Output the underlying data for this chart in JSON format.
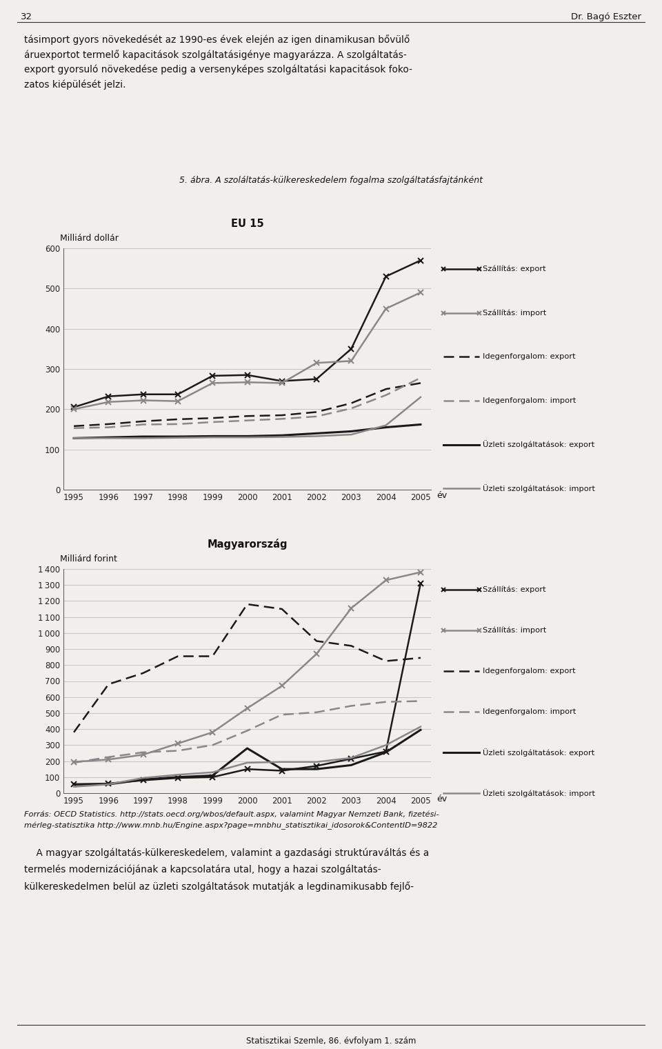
{
  "years": [
    1995,
    1996,
    1997,
    1998,
    1999,
    2000,
    2001,
    2002,
    2003,
    2004,
    2005
  ],
  "eu15": {
    "szallitas_export": [
      205,
      232,
      237,
      237,
      283,
      285,
      270,
      275,
      350,
      530,
      570
    ],
    "szallitas_import": [
      200,
      218,
      222,
      220,
      265,
      267,
      265,
      315,
      320,
      450,
      490
    ],
    "idegenforgalom_export": [
      158,
      163,
      170,
      175,
      178,
      183,
      185,
      193,
      215,
      250,
      265
    ],
    "idegenforgalom_import": [
      153,
      155,
      162,
      163,
      168,
      172,
      176,
      182,
      202,
      235,
      278
    ],
    "uzleti_export": [
      128,
      130,
      132,
      132,
      133,
      133,
      135,
      140,
      145,
      155,
      162
    ],
    "uzleti_import": [
      128,
      128,
      128,
      129,
      130,
      130,
      131,
      133,
      137,
      160,
      230
    ],
    "ylim": [
      0,
      600
    ],
    "yticks": [
      0,
      100,
      200,
      300,
      400,
      500,
      600
    ],
    "ylabel": "Milliárd dollár",
    "title": "EU 15"
  },
  "magyarorszag": {
    "szallitas_export": [
      55,
      60,
      80,
      95,
      100,
      150,
      140,
      170,
      215,
      260,
      1310
    ],
    "szallitas_import": [
      195,
      210,
      240,
      310,
      380,
      530,
      670,
      870,
      1155,
      1330,
      1380
    ],
    "idegenforgalom_export": [
      380,
      680,
      750,
      855,
      855,
      1180,
      1150,
      950,
      920,
      825,
      845
    ],
    "idegenforgalom_import": [
      190,
      225,
      255,
      265,
      300,
      390,
      490,
      505,
      545,
      570,
      575
    ],
    "uzleti_export": [
      55,
      55,
      85,
      100,
      110,
      280,
      150,
      150,
      175,
      255,
      395
    ],
    "uzleti_import": [
      40,
      55,
      95,
      115,
      130,
      190,
      195,
      195,
      220,
      300,
      415
    ],
    "ylim": [
      0,
      1400
    ],
    "yticks": [
      0,
      100,
      200,
      300,
      400,
      500,
      600,
      700,
      800,
      900,
      1000,
      1100,
      1200,
      1300,
      1400
    ],
    "ylabel": "Milliárd forint",
    "title": "Magyarország"
  },
  "legend_labels": [
    "Szállítás: export",
    "Szállítás: import",
    "Idegenforgalom: export",
    "Idegenforgalom: import",
    "Üzleti szolgáltatások: export",
    "Üzleti szolgáltatások: import"
  ],
  "header_text": "5. ábra. A szoláltatás-külkereskedelem fogalma szolgáltatásfajtánként",
  "top_text_line1": "tásimport gyors növekedését az 1990-es évek elején az igen dinamikusan bővülő",
  "top_text_line2": "áruexportot termelő kapacitások szolgáltatásigénye magyarázza. A szolgáltatás-",
  "top_text_line3": "export gyorsuló növekedése pedig a versenyképes szolgáltatási kapacitások foko-",
  "top_text_line4": "zatos kiépülését jelzi.",
  "source_line1": "Forrás: OECD Statistics. http://stats.oecd.org/wbos/default.aspx, valamint Magyar Nemzeti Bank, fizetési-",
  "source_line2": "mérleg-statisztika http://www.mnb.hu/Engine.aspx?page=mnbhu_statisztikai_idosorok&ContentID=9822",
  "bottom_text_line1": "    A magyar szolgáltatás-külkereskedelem, valamint a gazdasági struktúraváltás és a",
  "bottom_text_line2": "termelés modernizációjának a kapcsolatára utal, hogy a hazai szolgáltatás-",
  "bottom_text_line3": "külkereskedelmen belül az üzleti szolgáltatások mutatják a legdinamikusabb fejlő-",
  "footer": "Statisztikai Szemle, 86. évfolyam 1. szám",
  "page_num": "32",
  "page_author": "Dr. Bagó Eszter",
  "bg_color": "#f0efeb"
}
